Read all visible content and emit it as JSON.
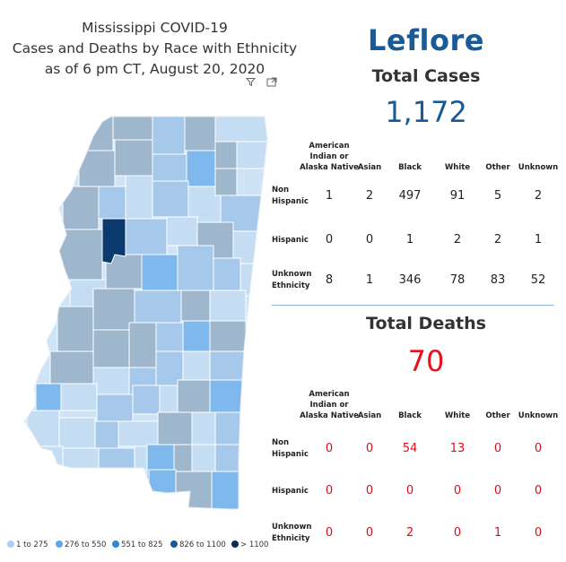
{
  "title": {
    "line1": "Mississippi COVID-19",
    "line2": "Cases and Deaths by Race with Ethnicity",
    "line3": "as of 6 pm CT, August 20, 2020"
  },
  "county": "Leflore",
  "cases": {
    "label": "Total Cases",
    "value": "1,172",
    "columns": [
      "American Indian or Alaska Native",
      "Asian",
      "Black",
      "White",
      "Other",
      "Unknown"
    ],
    "column_lines": [
      [
        "American",
        "Indian or",
        "Alaska Native"
      ],
      [
        "Asian"
      ],
      [
        "Black"
      ],
      [
        "White"
      ],
      [
        "Other"
      ],
      [
        "Unknown"
      ]
    ],
    "rows": [
      {
        "label_lines": [
          "Non",
          "Hispanic"
        ],
        "values": [
          "1",
          "2",
          "497",
          "91",
          "5",
          "2"
        ]
      },
      {
        "label_lines": [
          "Hispanic"
        ],
        "values": [
          "0",
          "0",
          "1",
          "2",
          "2",
          "1"
        ]
      },
      {
        "label_lines": [
          "Unknown",
          "Ethnicity"
        ],
        "values": [
          "8",
          "1",
          "346",
          "78",
          "83",
          "52"
        ]
      }
    ]
  },
  "deaths": {
    "label": "Total Deaths",
    "value": "70",
    "columns": [
      "American Indian or Alaska Native",
      "Asian",
      "Black",
      "White",
      "Other",
      "Unknown"
    ],
    "column_lines": [
      [
        "American",
        "Indian or",
        "Alaska Native"
      ],
      [
        "Asian"
      ],
      [
        "Black"
      ],
      [
        "White"
      ],
      [
        "Other"
      ],
      [
        "Unknown"
      ]
    ],
    "rows": [
      {
        "label_lines": [
          "Non",
          "Hispanic"
        ],
        "values": [
          "0",
          "0",
          "54",
          "13",
          "0",
          "0"
        ]
      },
      {
        "label_lines": [
          "Hispanic"
        ],
        "values": [
          "0",
          "0",
          "0",
          "0",
          "0",
          "0"
        ]
      },
      {
        "label_lines": [
          "Unknown",
          "Ethnicity"
        ],
        "values": [
          "0",
          "0",
          "2",
          "0",
          "1",
          "0"
        ]
      }
    ]
  },
  "legend": [
    {
      "label": "1 to 275",
      "color": "#a9d0f5"
    },
    {
      "label": "276 to 550",
      "color": "#5aa8ee"
    },
    {
      "label": "551 to 825",
      "color": "#2f86d8"
    },
    {
      "label": "826 to 1100",
      "color": "#14599e"
    },
    {
      "label": "> 1100",
      "color": "#0a2a57"
    }
  ],
  "colors": {
    "county_highlight": "#0b3a6e",
    "heading_blue": "#1a5a96",
    "death_red": "#e8101a"
  },
  "icons": {
    "filter": "filter-icon",
    "focus": "focus-mode-icon"
  }
}
